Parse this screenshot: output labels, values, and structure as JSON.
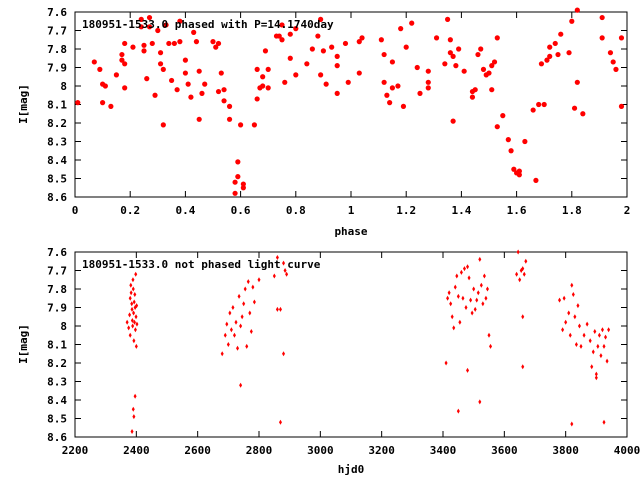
{
  "chart_data": [
    {
      "type": "scatter",
      "title": "180951-1533.0 phased with P=14.1740day",
      "xlabel": "phase",
      "ylabel": "I[mag]",
      "xlim": [
        0,
        2
      ],
      "ylim": [
        8.6,
        7.6
      ],
      "y_inverted": true,
      "grid": false,
      "marker": "filled-circle",
      "color": "#ff0000",
      "xticks": [
        0,
        0.2,
        0.4,
        0.6,
        0.8,
        1,
        1.2,
        1.4,
        1.6,
        1.8,
        2
      ],
      "yticks": [
        7.6,
        7.7,
        7.8,
        7.9,
        8,
        8.1,
        8.2,
        8.3,
        8.4,
        8.5,
        8.6
      ],
      "xtick_labels": [
        "0",
        "0.2",
        "0.4",
        "0.6",
        "0.8",
        "1",
        "1.2",
        "1.4",
        "1.6",
        "1.8",
        "2"
      ],
      "ytick_labels": [
        "7.6",
        "7.7",
        "7.8",
        "7.9",
        "8",
        "8.1",
        "8.2",
        "8.3",
        "8.4",
        "8.5",
        "8.6"
      ],
      "points": [
        [
          0.01,
          8.09
        ],
        [
          0.07,
          7.87
        ],
        [
          0.09,
          7.91
        ],
        [
          0.1,
          7.99
        ],
        [
          0.1,
          8.09
        ],
        [
          0.11,
          8.0
        ],
        [
          0.13,
          8.11
        ],
        [
          0.15,
          7.94
        ],
        [
          0.17,
          7.83
        ],
        [
          0.17,
          7.86
        ],
        [
          0.18,
          7.77
        ],
        [
          0.18,
          7.88
        ],
        [
          0.18,
          8.01
        ],
        [
          0.21,
          7.79
        ],
        [
          0.24,
          7.64
        ],
        [
          0.24,
          7.68
        ],
        [
          0.25,
          7.78
        ],
        [
          0.25,
          7.81
        ],
        [
          0.26,
          7.96
        ],
        [
          0.27,
          7.63
        ],
        [
          0.27,
          7.68
        ],
        [
          0.28,
          7.77
        ],
        [
          0.29,
          8.05
        ],
        [
          0.3,
          7.7
        ],
        [
          0.31,
          7.82
        ],
        [
          0.31,
          7.88
        ],
        [
          0.32,
          7.91
        ],
        [
          0.32,
          8.21
        ],
        [
          0.33,
          7.67
        ],
        [
          0.34,
          7.77
        ],
        [
          0.35,
          7.97
        ],
        [
          0.36,
          7.77
        ],
        [
          0.37,
          8.02
        ],
        [
          0.38,
          7.65
        ],
        [
          0.38,
          7.76
        ],
        [
          0.4,
          7.86
        ],
        [
          0.4,
          7.93
        ],
        [
          0.41,
          7.99
        ],
        [
          0.42,
          8.06
        ],
        [
          0.43,
          7.71
        ],
        [
          0.44,
          7.76
        ],
        [
          0.45,
          7.92
        ],
        [
          0.45,
          8.18
        ],
        [
          0.46,
          8.04
        ],
        [
          0.47,
          7.99
        ],
        [
          0.5,
          7.76
        ],
        [
          0.51,
          7.79
        ],
        [
          0.52,
          7.77
        ],
        [
          0.52,
          8.03
        ],
        [
          0.53,
          7.93
        ],
        [
          0.54,
          8.02
        ],
        [
          0.54,
          8.08
        ],
        [
          0.56,
          8.11
        ],
        [
          0.56,
          8.18
        ],
        [
          0.58,
          8.58
        ],
        [
          0.58,
          8.52
        ],
        [
          0.59,
          8.41
        ],
        [
          0.59,
          8.49
        ],
        [
          0.6,
          8.21
        ],
        [
          0.61,
          8.55
        ],
        [
          0.61,
          8.53
        ],
        [
          0.65,
          8.21
        ],
        [
          0.66,
          8.07
        ],
        [
          0.66,
          7.91
        ],
        [
          0.67,
          8.01
        ],
        [
          0.68,
          7.95
        ],
        [
          0.68,
          8.0
        ],
        [
          0.69,
          7.81
        ],
        [
          0.7,
          7.91
        ],
        [
          0.7,
          8.01
        ],
        [
          0.73,
          7.73
        ],
        [
          0.74,
          7.73
        ],
        [
          0.75,
          7.67
        ],
        [
          0.75,
          7.75
        ],
        [
          0.76,
          7.98
        ],
        [
          0.78,
          7.72
        ],
        [
          0.78,
          7.85
        ],
        [
          0.8,
          7.69
        ],
        [
          0.8,
          7.94
        ],
        [
          0.84,
          7.88
        ],
        [
          0.86,
          7.8
        ],
        [
          0.88,
          7.73
        ],
        [
          0.89,
          7.64
        ],
        [
          0.89,
          7.94
        ],
        [
          0.9,
          7.81
        ],
        [
          0.91,
          7.99
        ],
        [
          0.93,
          7.79
        ],
        [
          0.95,
          7.84
        ],
        [
          0.95,
          7.89
        ],
        [
          0.95,
          8.04
        ],
        [
          0.98,
          7.77
        ],
        [
          0.99,
          7.98
        ],
        [
          1.03,
          7.93
        ],
        [
          1.03,
          7.76
        ],
        [
          1.04,
          7.74
        ],
        [
          1.11,
          7.75
        ],
        [
          1.12,
          7.83
        ],
        [
          1.12,
          7.98
        ],
        [
          1.13,
          8.05
        ],
        [
          1.14,
          8.09
        ],
        [
          1.15,
          8.01
        ],
        [
          1.15,
          7.87
        ],
        [
          1.17,
          8.0
        ],
        [
          1.18,
          7.69
        ],
        [
          1.19,
          8.11
        ],
        [
          1.2,
          7.79
        ],
        [
          1.22,
          7.66
        ],
        [
          1.24,
          7.9
        ],
        [
          1.25,
          8.04
        ],
        [
          1.28,
          7.92
        ],
        [
          1.28,
          7.98
        ],
        [
          1.28,
          8.01
        ],
        [
          1.31,
          7.74
        ],
        [
          1.34,
          7.88
        ],
        [
          1.35,
          7.64
        ],
        [
          1.36,
          7.75
        ],
        [
          1.36,
          7.82
        ],
        [
          1.37,
          7.84
        ],
        [
          1.37,
          8.19
        ],
        [
          1.38,
          7.89
        ],
        [
          1.39,
          7.8
        ],
        [
          1.41,
          7.92
        ],
        [
          1.44,
          8.03
        ],
        [
          1.44,
          8.06
        ],
        [
          1.45,
          8.02
        ],
        [
          1.46,
          7.83
        ],
        [
          1.47,
          7.8
        ],
        [
          1.48,
          7.91
        ],
        [
          1.49,
          7.94
        ],
        [
          1.5,
          7.93
        ],
        [
          1.51,
          8.02
        ],
        [
          1.51,
          7.89
        ],
        [
          1.52,
          7.87
        ],
        [
          1.53,
          7.74
        ],
        [
          1.53,
          8.22
        ],
        [
          1.55,
          8.16
        ],
        [
          1.57,
          8.29
        ],
        [
          1.58,
          8.35
        ],
        [
          1.59,
          8.45
        ],
        [
          1.6,
          8.47
        ],
        [
          1.61,
          8.46
        ],
        [
          1.61,
          8.48
        ],
        [
          1.63,
          8.3
        ],
        [
          1.66,
          8.13
        ],
        [
          1.67,
          8.51
        ],
        [
          1.68,
          8.1
        ],
        [
          1.69,
          7.88
        ],
        [
          1.7,
          8.1
        ],
        [
          1.71,
          7.86
        ],
        [
          1.72,
          7.84
        ],
        [
          1.72,
          7.79
        ],
        [
          1.74,
          7.77
        ],
        [
          1.75,
          7.83
        ],
        [
          1.76,
          7.72
        ],
        [
          1.79,
          7.82
        ],
        [
          1.8,
          7.65
        ],
        [
          1.81,
          8.12
        ],
        [
          1.82,
          7.59
        ],
        [
          1.82,
          7.98
        ],
        [
          1.84,
          8.15
        ],
        [
          1.91,
          7.63
        ],
        [
          1.91,
          7.74
        ],
        [
          1.94,
          7.82
        ],
        [
          1.95,
          7.87
        ],
        [
          1.96,
          7.91
        ],
        [
          1.98,
          7.74
        ],
        [
          1.98,
          8.11
        ]
      ]
    },
    {
      "type": "scatter",
      "title": "180951-1533.0 not phased light curve",
      "xlabel": "hjd0",
      "ylabel": "I[mag]",
      "xlim": [
        2200,
        4000
      ],
      "ylim": [
        8.6,
        7.6
      ],
      "y_inverted": true,
      "grid": false,
      "marker": "small-diamond",
      "color": "#ff0000",
      "xticks": [
        2200,
        2400,
        2600,
        2800,
        3000,
        3200,
        3400,
        3600,
        3800,
        4000
      ],
      "yticks": [
        7.6,
        7.7,
        7.8,
        7.9,
        8,
        8.1,
        8.2,
        8.3,
        8.4,
        8.5,
        8.6
      ],
      "xtick_labels": [
        "2200",
        "2400",
        "2600",
        "2800",
        "3000",
        "3200",
        "3400",
        "3600",
        "3800",
        "4000"
      ],
      "ytick_labels": [
        "7.6",
        "7.7",
        "7.8",
        "7.9",
        "8",
        "8.1",
        "8.2",
        "8.3",
        "8.4",
        "8.5",
        "8.6"
      ],
      "points": [
        [
          2370,
          7.98
        ],
        [
          2375,
          8.01
        ],
        [
          2378,
          7.94
        ],
        [
          2380,
          7.85
        ],
        [
          2380,
          8.05
        ],
        [
          2382,
          7.78
        ],
        [
          2383,
          7.82
        ],
        [
          2385,
          7.88
        ],
        [
          2386,
          7.91
        ],
        [
          2387,
          7.97
        ],
        [
          2388,
          8.0
        ],
        [
          2389,
          7.75
        ],
        [
          2390,
          7.8
        ],
        [
          2391,
          7.93
        ],
        [
          2392,
          8.08
        ],
        [
          2393,
          7.87
        ],
        [
          2394,
          7.98
        ],
        [
          2395,
          7.83
        ],
        [
          2396,
          7.9
        ],
        [
          2397,
          8.02
        ],
        [
          2398,
          7.72
        ],
        [
          2399,
          7.95
        ],
        [
          2400,
          8.11
        ],
        [
          2401,
          7.89
        ],
        [
          2402,
          7.99
        ],
        [
          2390,
          8.45
        ],
        [
          2392,
          8.49
        ],
        [
          2396,
          8.38
        ],
        [
          2386,
          8.57
        ],
        [
          2680,
          8.15
        ],
        [
          2690,
          8.05
        ],
        [
          2695,
          7.99
        ],
        [
          2700,
          8.1
        ],
        [
          2705,
          7.93
        ],
        [
          2710,
          8.02
        ],
        [
          2715,
          7.9
        ],
        [
          2720,
          8.05
        ],
        [
          2725,
          7.98
        ],
        [
          2730,
          8.12
        ],
        [
          2735,
          7.84
        ],
        [
          2740,
          8.0
        ],
        [
          2745,
          7.95
        ],
        [
          2750,
          7.88
        ],
        [
          2755,
          7.8
        ],
        [
          2760,
          8.11
        ],
        [
          2765,
          7.76
        ],
        [
          2770,
          7.93
        ],
        [
          2775,
          8.03
        ],
        [
          2740,
          8.32
        ],
        [
          2780,
          7.79
        ],
        [
          2785,
          7.87
        ],
        [
          2800,
          7.75
        ],
        [
          2850,
          7.73
        ],
        [
          2860,
          7.63
        ],
        [
          2870,
          7.91
        ],
        [
          2880,
          7.66
        ],
        [
          2885,
          7.7
        ],
        [
          2860,
          7.91
        ],
        [
          2880,
          8.15
        ],
        [
          2870,
          8.52
        ],
        [
          2890,
          7.72
        ],
        [
          3410,
          8.2
        ],
        [
          3415,
          7.85
        ],
        [
          3420,
          7.82
        ],
        [
          3425,
          7.88
        ],
        [
          3430,
          7.95
        ],
        [
          3435,
          8.01
        ],
        [
          3440,
          7.79
        ],
        [
          3445,
          7.73
        ],
        [
          3450,
          7.84
        ],
        [
          3455,
          7.98
        ],
        [
          3460,
          7.71
        ],
        [
          3465,
          7.85
        ],
        [
          3470,
          7.69
        ],
        [
          3475,
          7.9
        ],
        [
          3480,
          7.68
        ],
        [
          3485,
          7.74
        ],
        [
          3490,
          7.86
        ],
        [
          3495,
          7.93
        ],
        [
          3500,
          7.8
        ],
        [
          3505,
          7.91
        ],
        [
          3510,
          7.86
        ],
        [
          3515,
          7.82
        ],
        [
          3520,
          7.64
        ],
        [
          3525,
          7.78
        ],
        [
          3530,
          7.88
        ],
        [
          3535,
          7.73
        ],
        [
          3540,
          7.85
        ],
        [
          3545,
          7.8
        ],
        [
          3550,
          8.05
        ],
        [
          3555,
          8.11
        ],
        [
          3450,
          8.46
        ],
        [
          3480,
          8.24
        ],
        [
          3520,
          8.41
        ],
        [
          3640,
          7.72
        ],
        [
          3645,
          7.6
        ],
        [
          3650,
          7.75
        ],
        [
          3655,
          7.7
        ],
        [
          3660,
          7.69
        ],
        [
          3665,
          7.72
        ],
        [
          3670,
          7.65
        ],
        [
          3660,
          7.95
        ],
        [
          3660,
          8.22
        ],
        [
          3780,
          7.86
        ],
        [
          3790,
          8.02
        ],
        [
          3795,
          7.85
        ],
        [
          3800,
          7.98
        ],
        [
          3810,
          7.93
        ],
        [
          3815,
          8.05
        ],
        [
          3820,
          7.78
        ],
        [
          3825,
          7.83
        ],
        [
          3830,
          7.95
        ],
        [
          3835,
          8.1
        ],
        [
          3840,
          7.89
        ],
        [
          3845,
          8.0
        ],
        [
          3850,
          8.11
        ],
        [
          3860,
          8.05
        ],
        [
          3870,
          7.99
        ],
        [
          3880,
          8.08
        ],
        [
          3885,
          8.22
        ],
        [
          3890,
          8.14
        ],
        [
          3895,
          8.03
        ],
        [
          3900,
          8.26
        ],
        [
          3905,
          8.11
        ],
        [
          3910,
          8.05
        ],
        [
          3915,
          8.16
        ],
        [
          3920,
          8.02
        ],
        [
          3925,
          8.11
        ],
        [
          3930,
          8.06
        ],
        [
          3935,
          8.19
        ],
        [
          3940,
          8.02
        ],
        [
          3820,
          8.53
        ],
        [
          3925,
          8.52
        ],
        [
          3900,
          8.28
        ]
      ]
    }
  ]
}
